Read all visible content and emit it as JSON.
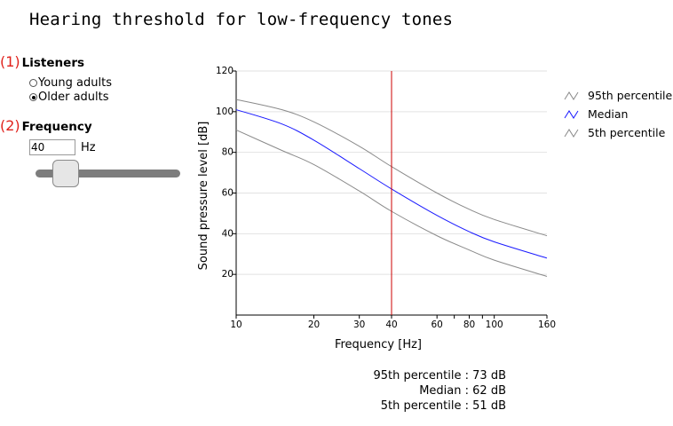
{
  "title": "Hearing threshold for low-frequency tones",
  "controls": {
    "listeners": {
      "number": "(1)",
      "label": "Listeners",
      "options": [
        "Young adults",
        "Older adults"
      ],
      "selected_index": 1
    },
    "frequency": {
      "number": "(2)",
      "label": "Frequency",
      "value": "40",
      "unit": "Hz"
    }
  },
  "chart_data": {
    "type": "line",
    "x_scale": "log",
    "xlabel": "Frequency [Hz]",
    "ylabel": "Sound pressure level [dB]",
    "xlim": [
      10,
      160
    ],
    "ylim": [
      0,
      120
    ],
    "x_ticks": [
      10,
      20,
      30,
      40,
      60,
      80,
      100,
      160
    ],
    "x_minor_ticks": [
      70,
      90
    ],
    "y_ticks": [
      20,
      40,
      60,
      80,
      100,
      120
    ],
    "marker_x": 40,
    "marker_color": "#cc0000",
    "x": [
      10,
      15,
      20,
      30,
      40,
      60,
      80,
      100,
      160
    ],
    "series": [
      {
        "name": "95th percentile",
        "color": "#8a8a8a",
        "values": [
          106,
          101,
          95,
          83,
          73,
          60,
          52,
          47,
          39
        ]
      },
      {
        "name": "Median",
        "color": "#1a1aff",
        "values": [
          101,
          94,
          86,
          72,
          62,
          49,
          41,
          36,
          28
        ]
      },
      {
        "name": "5th percentile",
        "color": "#8a8a8a",
        "values": [
          91,
          81,
          74,
          61,
          51,
          39,
          32,
          27,
          19
        ]
      }
    ],
    "legend_position": "right"
  },
  "readout": [
    {
      "label": "95th percentile",
      "value": "73 dB"
    },
    {
      "label": "Median",
      "value": "62 dB"
    },
    {
      "label": "5th percentile",
      "value": "51 dB"
    }
  ]
}
